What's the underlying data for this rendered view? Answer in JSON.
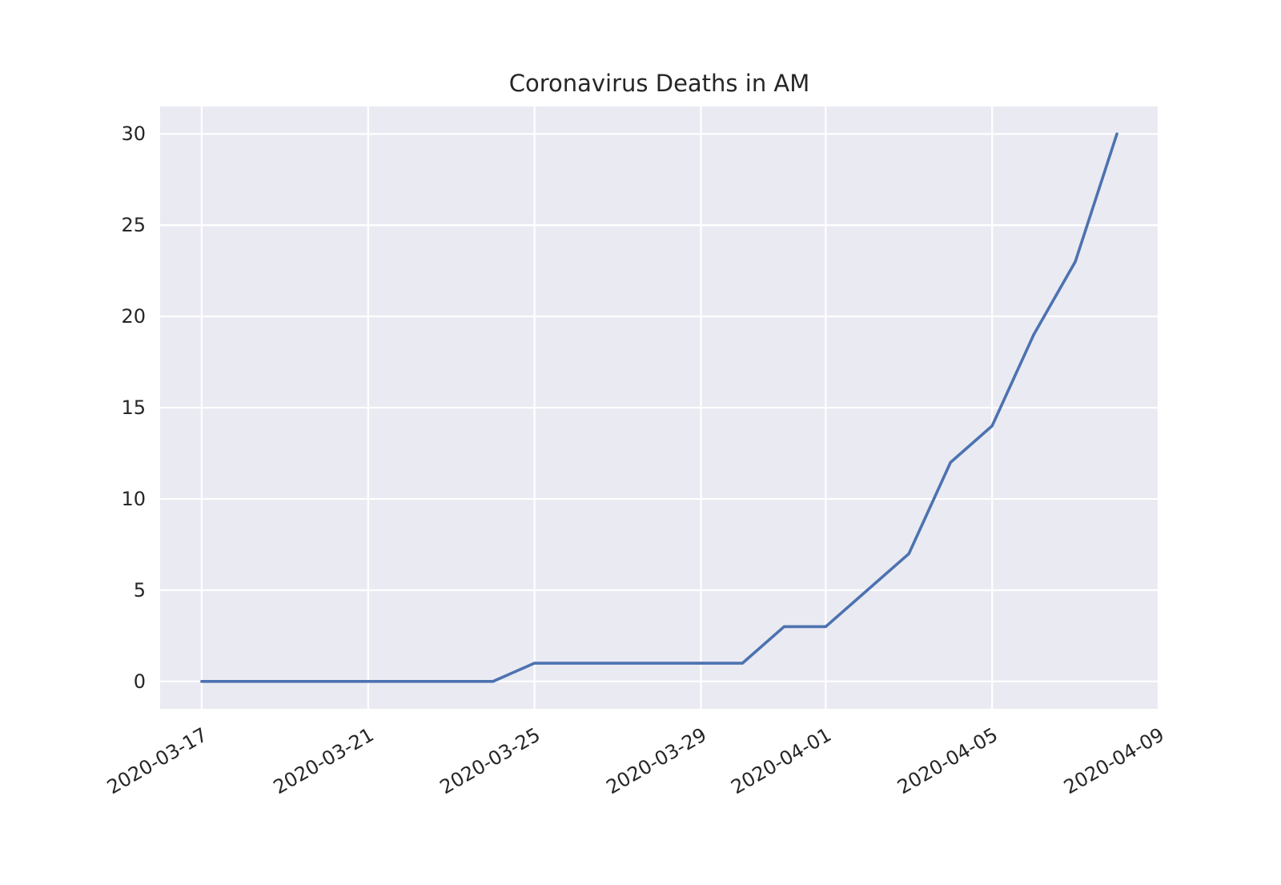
{
  "chart_data": {
    "type": "line",
    "title": "Coronavirus Deaths in AM",
    "xlabel": "",
    "ylabel": "",
    "x_tick_labels": [
      "2020-03-17",
      "2020-03-21",
      "2020-03-25",
      "2020-03-29",
      "2020-04-01",
      "2020-04-05",
      "2020-04-09"
    ],
    "y_tick_labels": [
      "0",
      "5",
      "10",
      "15",
      "20",
      "25",
      "30"
    ],
    "x": [
      "2020-03-17",
      "2020-03-18",
      "2020-03-19",
      "2020-03-20",
      "2020-03-21",
      "2020-03-22",
      "2020-03-23",
      "2020-03-24",
      "2020-03-25",
      "2020-03-26",
      "2020-03-27",
      "2020-03-28",
      "2020-03-29",
      "2020-03-30",
      "2020-03-31",
      "2020-04-01",
      "2020-04-02",
      "2020-04-03",
      "2020-04-04",
      "2020-04-05",
      "2020-04-06",
      "2020-04-07",
      "2020-04-08"
    ],
    "series": [
      {
        "values": [
          0,
          0,
          0,
          0,
          0,
          0,
          0,
          0,
          1,
          1,
          1,
          1,
          1,
          1,
          3,
          3,
          5,
          7,
          12,
          14,
          19,
          23,
          30
        ],
        "color": "#4c72b0"
      }
    ],
    "xlim": [
      "2020-03-16",
      "2020-04-09"
    ],
    "ylim": [
      -1.5,
      31.5
    ],
    "grid": true,
    "background": "#eaeaf2",
    "grid_color": "#ffffff",
    "legend": "none"
  }
}
